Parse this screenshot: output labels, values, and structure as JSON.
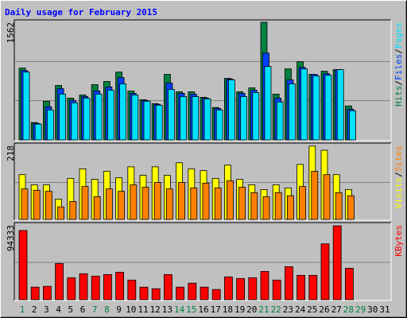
{
  "chart_data": [
    {
      "type": "bar",
      "title": "Daily usage for February 2015",
      "categories": [
        "1",
        "2",
        "3",
        "4",
        "5",
        "6",
        "7",
        "8",
        "9",
        "10",
        "11",
        "12",
        "13",
        "14",
        "15",
        "16",
        "17",
        "18",
        "19",
        "20",
        "21",
        "22",
        "23",
        "24",
        "25",
        "26",
        "27",
        "28",
        "29",
        "30",
        "31"
      ],
      "weekend": [
        true,
        false,
        false,
        false,
        false,
        false,
        true,
        true,
        false,
        false,
        false,
        false,
        false,
        true,
        true,
        false,
        false,
        false,
        false,
        false,
        true,
        true,
        false,
        false,
        false,
        false,
        false,
        true,
        true,
        false,
        false
      ],
      "weekend_color": "#008040",
      "legend_separator": "/",
      "ylim": [
        0,
        1562
      ],
      "yticks": [
        1562
      ],
      "series": [
        {
          "name": "Hits",
          "color": "#008040",
          "values": [
            954,
            231,
            514,
            723,
            555,
            597,
            734,
            776,
            901,
            650,
            534,
            482,
            870,
            639,
            639,
            566,
            430,
            817,
            639,
            692,
            1562,
            608,
            943,
            1038,
            870,
            912,
            933,
            451,
            null,
            null,
            null
          ]
        },
        {
          "name": "Files",
          "color": "#0040ff",
          "values": [
            922,
            220,
            440,
            681,
            524,
            576,
            650,
            702,
            828,
            618,
            524,
            472,
            755,
            618,
            608,
            555,
            419,
            807,
            618,
            660,
            1153,
            555,
            797,
            964,
            870,
            880,
            933,
            409,
            null,
            null,
            null
          ]
        },
        {
          "name": "Pages",
          "color": "#00e0ff",
          "values": [
            901,
            210,
            398,
            608,
            493,
            555,
            608,
            660,
            744,
            597,
            514,
            461,
            671,
            576,
            576,
            545,
            398,
            797,
            576,
            629,
            975,
            503,
            744,
            943,
            849,
            859,
            933,
            388,
            null,
            null,
            null
          ]
        }
      ]
    },
    {
      "type": "bar",
      "legend_separator": "/",
      "ylim": [
        0,
        218
      ],
      "yticks": [
        218
      ],
      "series": [
        {
          "name": "Visits",
          "color": "#ffff00",
          "values": [
            132,
            102,
            102,
            60,
            121,
            149,
            118,
            142,
            123,
            155,
            130,
            155,
            130,
            167,
            149,
            144,
            121,
            160,
            118,
            102,
            88,
            102,
            93,
            162,
            216,
            204,
            132,
            88,
            null,
            null,
            null
          ]
        },
        {
          "name": "Sites",
          "color": "#ff8000",
          "values": [
            90,
            86,
            83,
            37,
            53,
            97,
            67,
            90,
            83,
            102,
            95,
            109,
            90,
            109,
            93,
            107,
            93,
            114,
            95,
            79,
            67,
            79,
            70,
            97,
            142,
            132,
            79,
            70,
            null,
            null,
            null
          ]
        }
      ]
    },
    {
      "type": "bar",
      "ylim": [
        0,
        94333
      ],
      "yticks": [
        94333
      ],
      "series": [
        {
          "name": "KBytes",
          "color": "#ff0000",
          "values": [
            87400,
            15900,
            16900,
            45700,
            27800,
            32800,
            29800,
            31800,
            34700,
            24800,
            15900,
            13900,
            31800,
            15900,
            20900,
            15900,
            12900,
            28800,
            26800,
            27800,
            35700,
            24800,
            41700,
            30800,
            30800,
            70500,
            93300,
            39700,
            null,
            null,
            null
          ]
        }
      ]
    }
  ]
}
